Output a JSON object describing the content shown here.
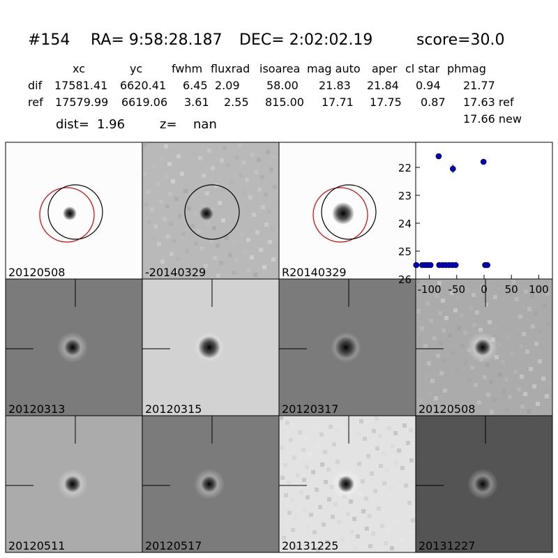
{
  "header": {
    "id": "#154",
    "ra": "RA= 9:58:28.187",
    "dec": "DEC= 2:02:02.19",
    "score": "score=30.0"
  },
  "table": {
    "columns": [
      "xc",
      "yc",
      "fwhm",
      "fluxrad",
      "isoarea",
      "mag auto",
      "aper",
      "cl star",
      "phmag"
    ],
    "rows": [
      {
        "name": "dif",
        "cells": [
          "17581.41",
          "6620.41",
          "6.45",
          "2.09",
          "58.00",
          "21.83",
          "21.84",
          "0.94",
          "21.77"
        ]
      },
      {
        "name": "ref",
        "cells": [
          "17579.99",
          "6619.06",
          "3.61",
          "2.55",
          "815.00",
          "17.71",
          "17.75",
          "0.87",
          "17.63 ref"
        ]
      }
    ],
    "extra": "17.66 new"
  },
  "dist": {
    "label": "dist=",
    "value": "1.96",
    "z_label": "z=",
    "z_value": "nan"
  },
  "panels": [
    {
      "label": "20120508",
      "label_color": "#000000"
    },
    {
      "label": "-20140329",
      "label_color": "#000000"
    },
    {
      "label": "R20140329",
      "label_color": "#000000"
    },
    {
      "label": "20120313",
      "label_color": "#000000"
    },
    {
      "label": "20120315",
      "label_color": "#000000"
    },
    {
      "label": "20120317",
      "label_color": "#000000"
    },
    {
      "label": "20120508",
      "label_color": "#ff0000"
    },
    {
      "label": "20120511",
      "label_color": "#000000"
    },
    {
      "label": "20120517",
      "label_color": "#000000"
    },
    {
      "label": "20131225",
      "label_color": "#000000"
    },
    {
      "label": "20131227",
      "label_color": "#000000"
    }
  ],
  "chart_data": {
    "type": "scatter",
    "color": "#0000cc",
    "x": [
      -83,
      -57,
      -1,
      -124,
      -113,
      -108,
      -103,
      -98,
      -82,
      -76,
      -70,
      -64,
      -58,
      -52,
      2,
      6
    ],
    "values": [
      21.6,
      22.05,
      21.8,
      25.5,
      25.5,
      25.5,
      25.5,
      25.5,
      25.5,
      25.5,
      25.5,
      25.5,
      25.5,
      25.5,
      25.5,
      25.5
    ],
    "errors": [
      0.1,
      0.15,
      0.05,
      0.05,
      0.05,
      0.05,
      0.05,
      0.05,
      0.05,
      0.05,
      0.05,
      0.05,
      0.05,
      0.05,
      0.05,
      0.05
    ],
    "xlim": [
      -125,
      125
    ],
    "ylim": [
      26,
      21.1
    ],
    "xticks": [
      -100,
      -50,
      0,
      50,
      100
    ],
    "yticks": [
      22,
      23,
      24,
      25,
      26
    ]
  }
}
